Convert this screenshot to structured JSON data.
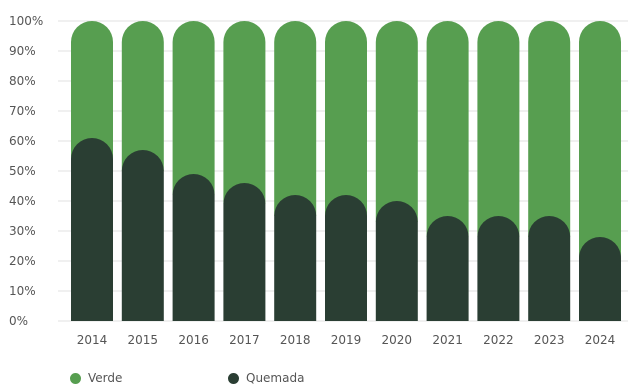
{
  "chart_data": {
    "type": "bar",
    "stacked": true,
    "categories": [
      "2014",
      "2015",
      "2016",
      "2017",
      "2018",
      "2019",
      "2020",
      "2021",
      "2022",
      "2023",
      "2024"
    ],
    "series": [
      {
        "name": "Quemada",
        "color": "#2a3e33",
        "values": [
          61,
          57,
          49,
          46,
          42,
          42,
          40,
          35,
          35,
          35,
          28
        ]
      },
      {
        "name": "Verde",
        "color": "#579e50",
        "values": [
          39,
          43,
          51,
          54,
          58,
          58,
          60,
          65,
          65,
          65,
          72
        ]
      }
    ],
    "y_ticks": [
      "0%",
      "10%",
      "20%",
      "30%",
      "40%",
      "50%",
      "60%",
      "70%",
      "80%",
      "90%",
      "100%"
    ],
    "ylim": [
      0,
      100
    ],
    "grid": true,
    "legend_position": "bottom-left",
    "legend": [
      {
        "label": "Verde",
        "color": "#579e50"
      },
      {
        "label": "Quemada",
        "color": "#2a3e33"
      }
    ]
  }
}
